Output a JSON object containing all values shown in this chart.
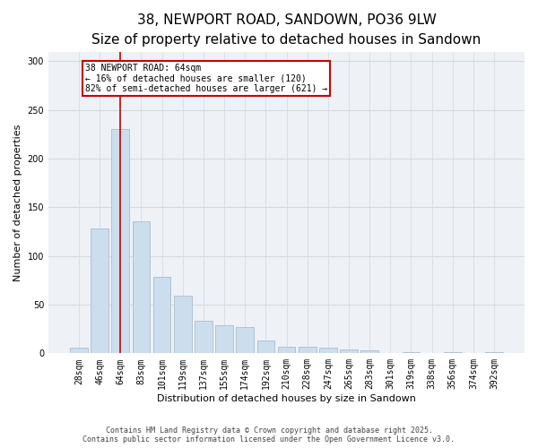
{
  "title": "38, NEWPORT ROAD, SANDOWN, PO36 9LW",
  "subtitle": "Size of property relative to detached houses in Sandown",
  "xlabel": "Distribution of detached houses by size in Sandown",
  "ylabel": "Number of detached properties",
  "footer_line1": "Contains HM Land Registry data © Crown copyright and database right 2025.",
  "footer_line2": "Contains public sector information licensed under the Open Government Licence v3.0.",
  "categories": [
    "28sqm",
    "46sqm",
    "64sqm",
    "83sqm",
    "101sqm",
    "119sqm",
    "137sqm",
    "155sqm",
    "174sqm",
    "192sqm",
    "210sqm",
    "228sqm",
    "247sqm",
    "265sqm",
    "283sqm",
    "301sqm",
    "319sqm",
    "338sqm",
    "356sqm",
    "374sqm",
    "392sqm"
  ],
  "values": [
    6,
    128,
    230,
    136,
    79,
    59,
    33,
    29,
    27,
    13,
    7,
    7,
    6,
    4,
    3,
    0,
    1,
    0,
    1,
    0,
    1
  ],
  "bar_color": "#ccdded",
  "bar_edge_color": "#aabccc",
  "vline_x": 2.0,
  "vline_color": "#cc0000",
  "annotation_text": "38 NEWPORT ROAD: 64sqm\n← 16% of detached houses are smaller (120)\n82% of semi-detached houses are larger (621) →",
  "annotation_box_color": "#cc0000",
  "ylim": [
    0,
    310
  ],
  "yticks": [
    0,
    50,
    100,
    150,
    200,
    250,
    300
  ],
  "grid_color": "#d0d8e0",
  "background_color": "#eef2f7",
  "title_fontsize": 11,
  "subtitle_fontsize": 9.5,
  "axis_fontsize": 8,
  "tick_fontsize": 7,
  "footer_fontsize": 6
}
